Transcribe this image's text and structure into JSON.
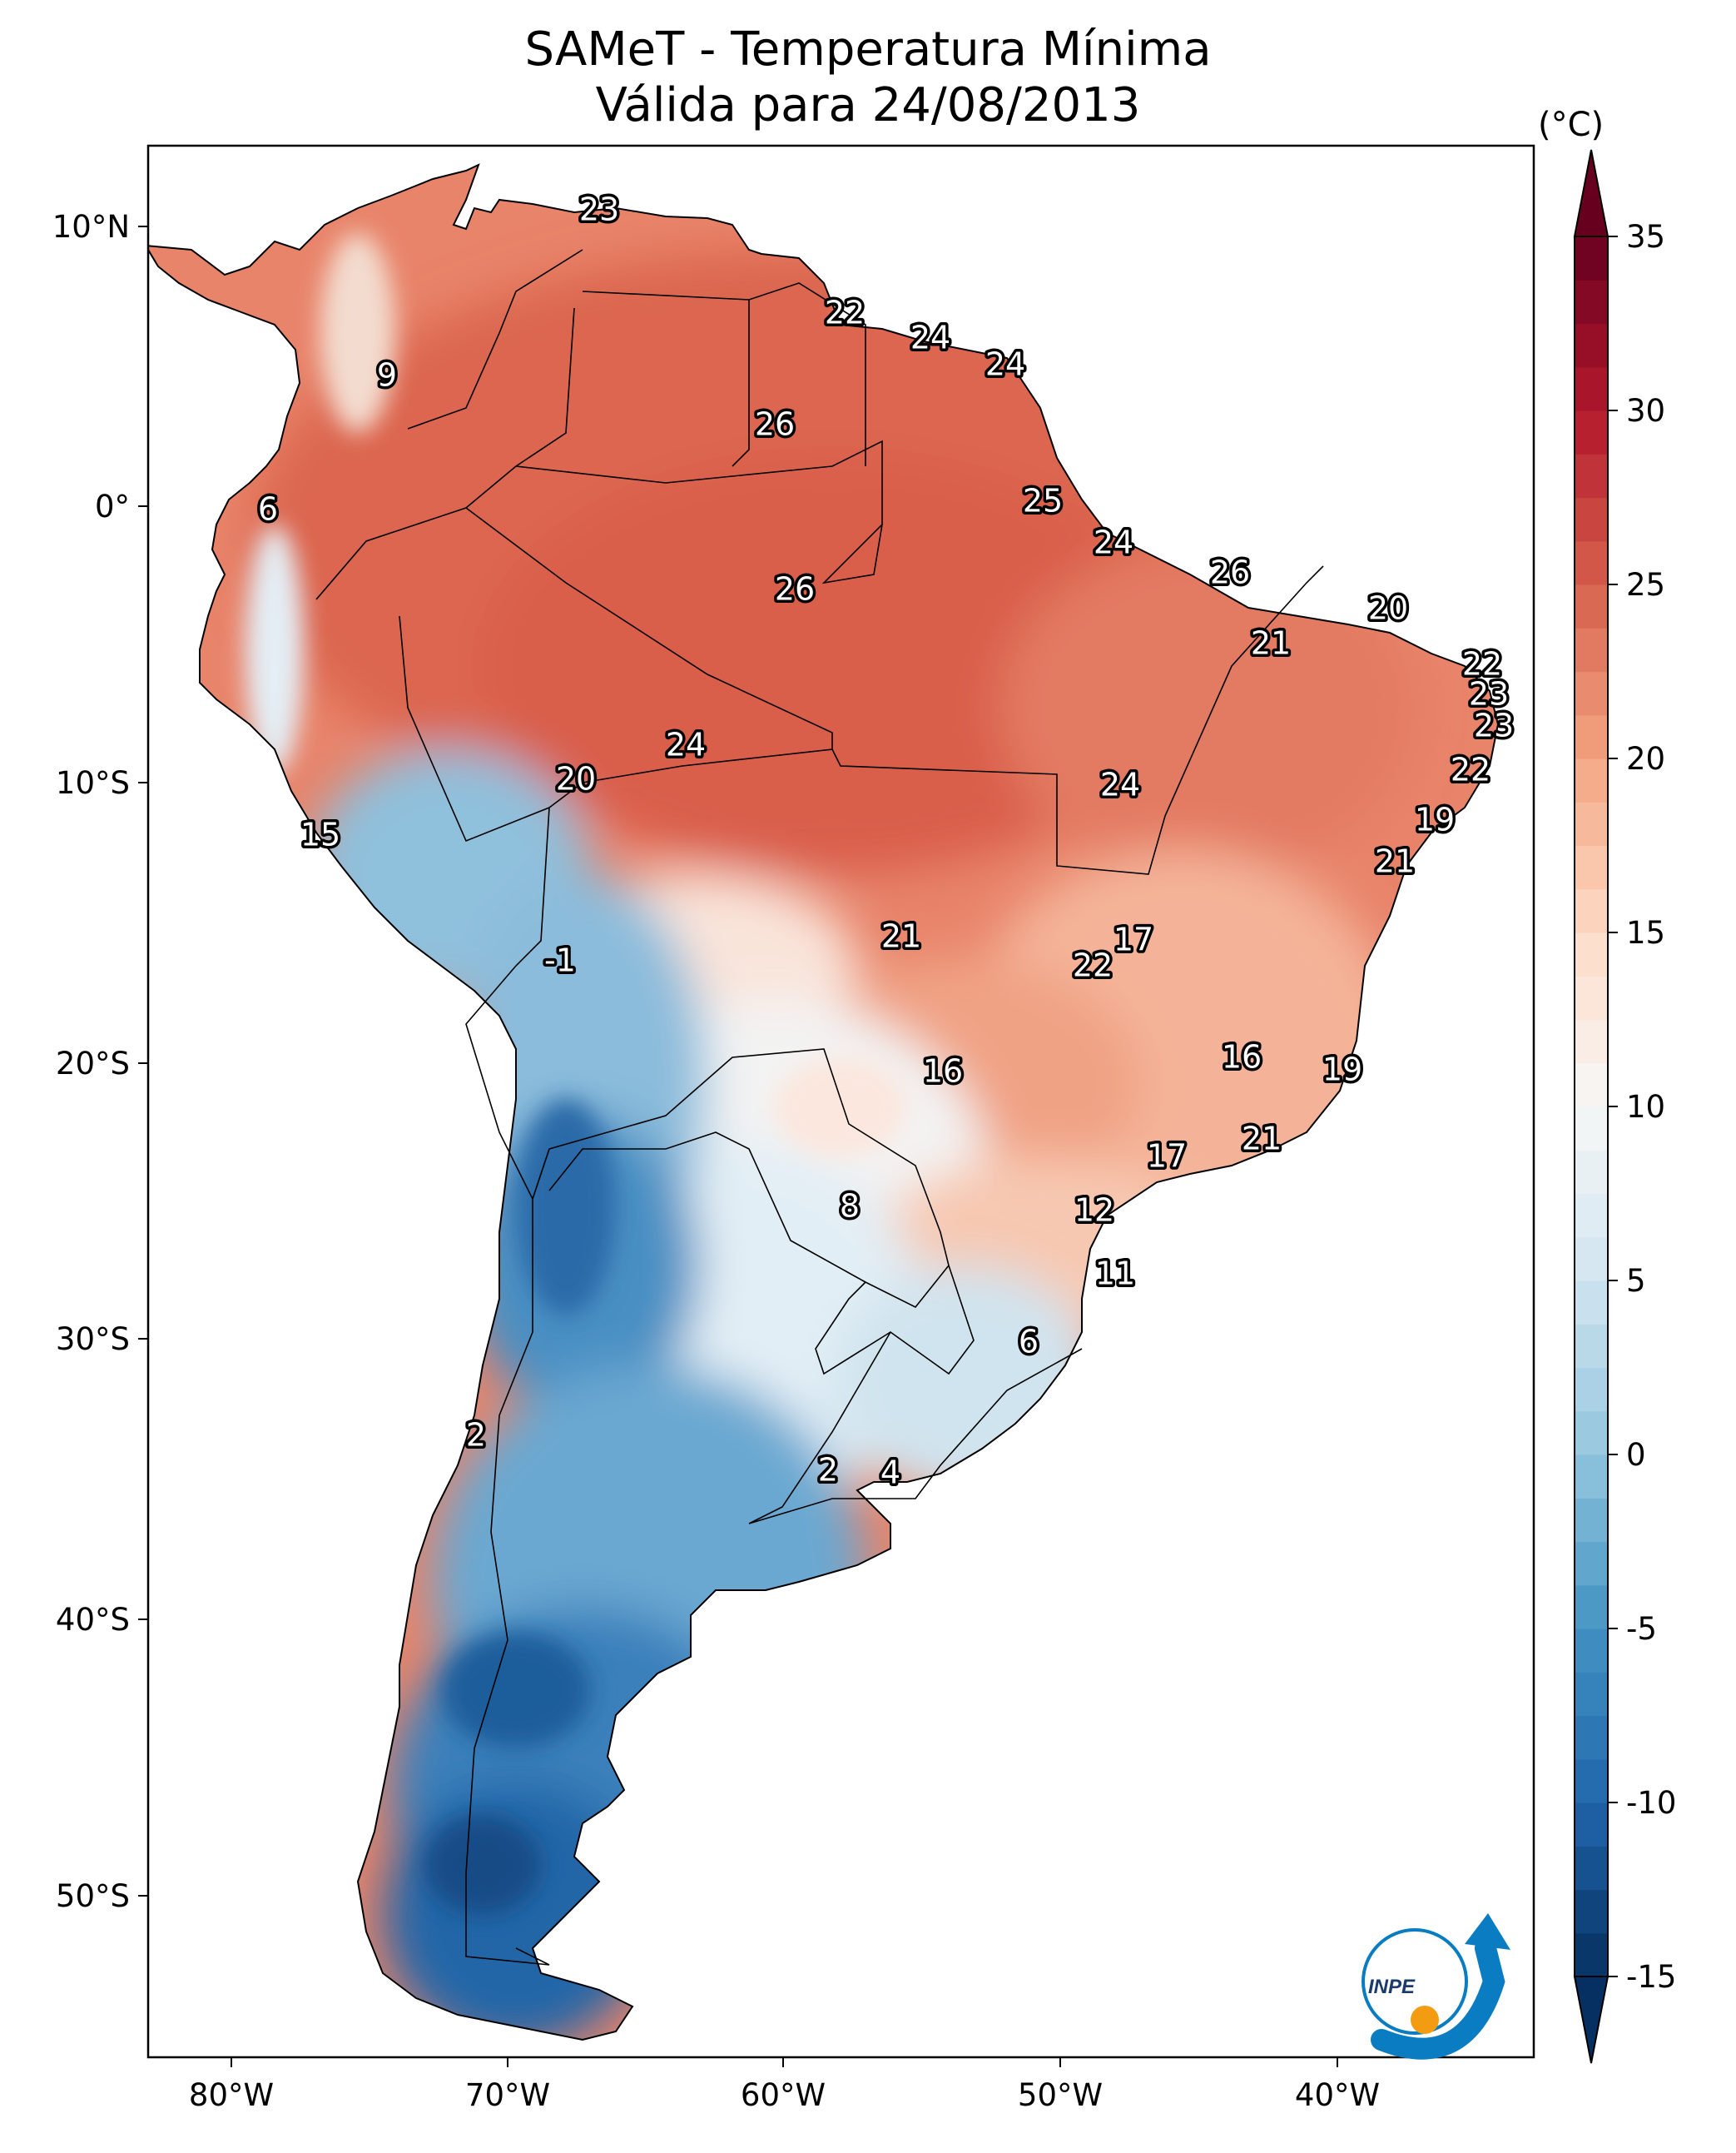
{
  "title": {
    "line1": "SAMeT - Temperatura Mínima",
    "line2": "Válida para 24/08/2013"
  },
  "colorbar": {
    "unit": "(°C)",
    "min": -15,
    "max": 35,
    "ticks": [
      "35",
      "30",
      "25",
      "20",
      "15",
      "10",
      "5",
      "0",
      "-5",
      "-10",
      "-15"
    ],
    "colors": [
      "#053061",
      "#2166ac",
      "#4393c3",
      "#92c5de",
      "#d1e5f0",
      "#f7f7f7",
      "#fddbc7",
      "#f4a582",
      "#d6604d",
      "#b2182b",
      "#67001f"
    ]
  },
  "axes": {
    "lon_ticks": [
      "80°W",
      "70°W",
      "60°W",
      "50°W",
      "40°W"
    ],
    "lat_ticks": [
      "10°N",
      "0°",
      "10°S",
      "20°S",
      "30°S",
      "40°S",
      "50°S"
    ]
  },
  "station_values": [
    "23",
    "22",
    "24",
    "24",
    "9",
    "26",
    "25",
    "6",
    "24",
    "26",
    "26",
    "20",
    "21",
    "22",
    "23",
    "23",
    "24",
    "22",
    "24",
    "19",
    "20",
    "15",
    "21",
    "17",
    "21",
    "22",
    "-1",
    "16",
    "16",
    "19",
    "21",
    "17",
    "8",
    "12",
    "11",
    "6",
    "2",
    "2",
    "4"
  ],
  "logo": {
    "text": "INPE",
    "colors": [
      "#0a7cc1",
      "#f39c12"
    ]
  }
}
